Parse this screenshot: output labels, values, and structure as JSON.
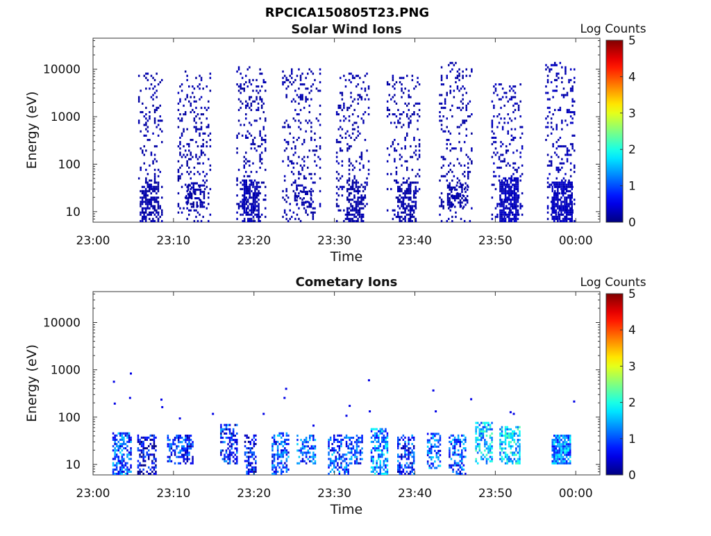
{
  "figure": {
    "title": "RPCICA150805T23.PNG"
  },
  "colormap": "jet",
  "chart_data": [
    {
      "type": "heatmap",
      "title": "Solar Wind Ions",
      "xlabel": "Time",
      "ylabel": "Energy (eV)",
      "y_scale": "log",
      "ylim": [
        6,
        45000
      ],
      "y_ticks": [
        10,
        100,
        1000,
        10000
      ],
      "y_tick_labels": [
        "10",
        "100",
        "1000",
        "10000"
      ],
      "xlim_minutes": [
        0,
        63
      ],
      "x_ticks_minutes": [
        0,
        10,
        20,
        30,
        40,
        50,
        60
      ],
      "x_tick_labels": [
        "23:00",
        "23:10",
        "23:20",
        "23:30",
        "23:40",
        "23:50",
        "00:00"
      ],
      "colorbar": {
        "label": "Log Counts",
        "range": [
          0,
          5
        ],
        "ticks": [
          "0",
          "1",
          "2",
          "3",
          "4",
          "5"
        ]
      },
      "clusters": [
        {
          "t_start": 5.6,
          "t_end": 8.6,
          "e_low": 6,
          "e_high": 8000,
          "density": 0.15,
          "level": 0.2
        },
        {
          "t_start": 10.5,
          "t_end": 14.6,
          "e_low": 6,
          "e_high": 9000,
          "density": 0.15,
          "level": 0.2
        },
        {
          "t_start": 17.8,
          "t_end": 21.4,
          "e_low": 6,
          "e_high": 11000,
          "density": 0.16,
          "level": 0.2
        },
        {
          "t_start": 23.5,
          "t_end": 28.2,
          "e_low": 6,
          "e_high": 10000,
          "density": 0.13,
          "level": 0.2
        },
        {
          "t_start": 30.2,
          "t_end": 34.3,
          "e_low": 6,
          "e_high": 8000,
          "density": 0.15,
          "level": 0.2
        },
        {
          "t_start": 36.5,
          "t_end": 40.5,
          "e_low": 6,
          "e_high": 7000,
          "density": 0.15,
          "level": 0.2
        },
        {
          "t_start": 43.0,
          "t_end": 47.0,
          "e_low": 6,
          "e_high": 13000,
          "density": 0.14,
          "level": 0.2
        },
        {
          "t_start": 49.5,
          "t_end": 53.4,
          "e_low": 6,
          "e_high": 5000,
          "density": 0.17,
          "level": 0.25
        },
        {
          "t_start": 56.2,
          "t_end": 59.8,
          "e_low": 6,
          "e_high": 14000,
          "density": 0.17,
          "level": 0.25
        }
      ],
      "cores": [
        {
          "t_start": 5.8,
          "t_end": 8.0,
          "e_low": 6,
          "e_high": 40,
          "density": 0.5,
          "level": 0.2
        },
        {
          "t_start": 11.5,
          "t_end": 13.8,
          "e_low": 12,
          "e_high": 40,
          "density": 0.5,
          "level": 0.2
        },
        {
          "t_start": 18.5,
          "t_end": 20.5,
          "e_low": 6,
          "e_high": 45,
          "density": 0.55,
          "level": 0.25
        },
        {
          "t_start": 25.0,
          "t_end": 27.0,
          "e_low": 12,
          "e_high": 35,
          "density": 0.35,
          "level": 0.2
        },
        {
          "t_start": 31.5,
          "t_end": 33.8,
          "e_low": 6,
          "e_high": 40,
          "density": 0.5,
          "level": 0.2
        },
        {
          "t_start": 37.8,
          "t_end": 40.0,
          "e_low": 6,
          "e_high": 40,
          "density": 0.5,
          "level": 0.2
        },
        {
          "t_start": 44.0,
          "t_end": 46.5,
          "e_low": 12,
          "e_high": 40,
          "density": 0.45,
          "level": 0.2
        },
        {
          "t_start": 50.5,
          "t_end": 52.8,
          "e_low": 6,
          "e_high": 50,
          "density": 0.75,
          "level": 0.3
        },
        {
          "t_start": 57.0,
          "t_end": 59.5,
          "e_low": 6,
          "e_high": 40,
          "density": 0.75,
          "level": 0.3
        }
      ]
    },
    {
      "type": "heatmap",
      "title": "Cometary Ions",
      "xlabel": "Time",
      "ylabel": "Energy (eV)",
      "y_scale": "log",
      "ylim": [
        6,
        45000
      ],
      "y_ticks": [
        10,
        100,
        1000,
        10000
      ],
      "y_tick_labels": [
        "10",
        "100",
        "1000",
        "10000"
      ],
      "xlim_minutes": [
        0,
        63
      ],
      "x_ticks_minutes": [
        0,
        10,
        20,
        30,
        40,
        50,
        60
      ],
      "x_tick_labels": [
        "23:00",
        "23:10",
        "23:20",
        "23:30",
        "23:40",
        "23:50",
        "00:00"
      ],
      "colorbar": {
        "label": "Log Counts",
        "range": [
          0,
          5
        ],
        "ticks": [
          "0",
          "1",
          "2",
          "3",
          "4",
          "5"
        ]
      },
      "clusters": [
        {
          "t_start": 2.4,
          "t_end": 4.8,
          "e_low": 6,
          "e_high": 45,
          "density": 0.6,
          "level": 1.0
        },
        {
          "t_start": 5.5,
          "t_end": 7.8,
          "e_low": 6,
          "e_high": 40,
          "density": 0.45,
          "level": 0.4
        },
        {
          "t_start": 9.2,
          "t_end": 12.5,
          "e_low": 10,
          "e_high": 40,
          "density": 0.5,
          "level": 0.8
        },
        {
          "t_start": 15.8,
          "t_end": 17.8,
          "e_low": 10,
          "e_high": 70,
          "density": 0.5,
          "level": 0.8
        },
        {
          "t_start": 18.8,
          "t_end": 20.2,
          "e_low": 6,
          "e_high": 40,
          "density": 0.5,
          "level": 0.6
        },
        {
          "t_start": 22.2,
          "t_end": 24.2,
          "e_low": 6,
          "e_high": 45,
          "density": 0.5,
          "level": 1.0
        },
        {
          "t_start": 25.3,
          "t_end": 27.6,
          "e_low": 10,
          "e_high": 40,
          "density": 0.5,
          "level": 1.0
        },
        {
          "t_start": 29.2,
          "t_end": 31.8,
          "e_low": 6,
          "e_high": 40,
          "density": 0.5,
          "level": 1.0
        },
        {
          "t_start": 31.8,
          "t_end": 33.5,
          "e_low": 10,
          "e_high": 40,
          "density": 0.5,
          "level": 0.9
        },
        {
          "t_start": 34.5,
          "t_end": 36.5,
          "e_low": 6,
          "e_high": 55,
          "density": 0.55,
          "level": 1.3
        },
        {
          "t_start": 37.8,
          "t_end": 39.8,
          "e_low": 6,
          "e_high": 40,
          "density": 0.5,
          "level": 0.8
        },
        {
          "t_start": 41.5,
          "t_end": 43.2,
          "e_low": 8,
          "e_high": 45,
          "density": 0.55,
          "level": 1.1
        },
        {
          "t_start": 44.2,
          "t_end": 46.2,
          "e_low": 6,
          "e_high": 40,
          "density": 0.5,
          "level": 1.0
        },
        {
          "t_start": 47.5,
          "t_end": 49.5,
          "e_low": 10,
          "e_high": 75,
          "density": 0.55,
          "level": 1.6
        },
        {
          "t_start": 50.5,
          "t_end": 53.0,
          "e_low": 10,
          "e_high": 60,
          "density": 0.55,
          "level": 1.6
        },
        {
          "t_start": 57.0,
          "t_end": 59.3,
          "e_low": 10,
          "e_high": 40,
          "density": 0.85,
          "level": 1.3
        }
      ],
      "scatter_points": [
        {
          "t": 2.6,
          "e": 550
        },
        {
          "t": 2.7,
          "e": 190
        },
        {
          "t": 4.6,
          "e": 250
        },
        {
          "t": 4.7,
          "e": 820
        },
        {
          "t": 8.5,
          "e": 230
        },
        {
          "t": 8.6,
          "e": 160
        },
        {
          "t": 10.8,
          "e": 92
        },
        {
          "t": 14.9,
          "e": 115
        },
        {
          "t": 21.2,
          "e": 115
        },
        {
          "t": 23.8,
          "e": 250
        },
        {
          "t": 24.0,
          "e": 390
        },
        {
          "t": 27.4,
          "e": 65
        },
        {
          "t": 31.5,
          "e": 105
        },
        {
          "t": 31.9,
          "e": 170
        },
        {
          "t": 34.3,
          "e": 590
        },
        {
          "t": 34.4,
          "e": 130
        },
        {
          "t": 42.3,
          "e": 360
        },
        {
          "t": 42.6,
          "e": 130
        },
        {
          "t": 47.0,
          "e": 235
        },
        {
          "t": 51.9,
          "e": 125
        },
        {
          "t": 52.3,
          "e": 115
        },
        {
          "t": 59.8,
          "e": 210
        }
      ]
    }
  ]
}
